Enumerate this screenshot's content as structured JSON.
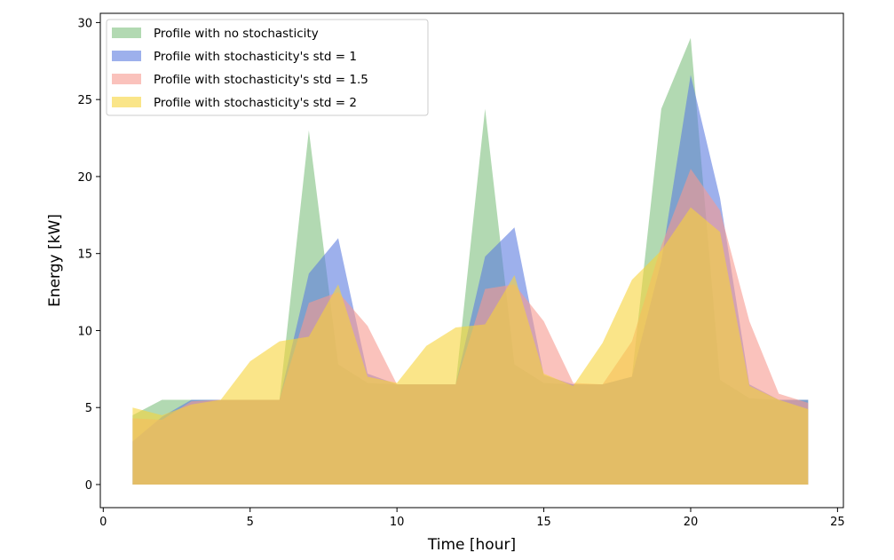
{
  "chart_data": {
    "type": "area",
    "xlabel": "Time [hour]",
    "ylabel": "Energy [kW]",
    "xlim": [
      -0.1,
      25.2
    ],
    "ylim": [
      -1.5,
      30.6
    ],
    "xticks": [
      0,
      5,
      10,
      15,
      20,
      25
    ],
    "yticks": [
      0,
      5,
      10,
      15,
      20,
      25,
      30
    ],
    "grid": false,
    "legend_position": "upper-left",
    "x": [
      1,
      2,
      3,
      4,
      5,
      6,
      7,
      8,
      9,
      10,
      11,
      12,
      13,
      14,
      15,
      16,
      17,
      18,
      19,
      20,
      21,
      22,
      23,
      24
    ],
    "series": [
      {
        "name": "Profile with no stochasticity",
        "color": "#7fbf7f",
        "values": [
          4.5,
          5.5,
          5.5,
          5.5,
          5.5,
          5.5,
          23.0,
          7.8,
          6.6,
          6.5,
          6.5,
          6.5,
          24.4,
          7.8,
          6.6,
          6.5,
          6.5,
          7.0,
          24.4,
          29.0,
          6.8,
          5.6,
          5.5,
          5.5
        ]
      },
      {
        "name": "Profile with stochasticity's std = 1",
        "color": "#5b7be0",
        "values": [
          2.8,
          4.4,
          5.5,
          5.5,
          5.5,
          5.5,
          13.7,
          16.0,
          7.2,
          6.5,
          6.5,
          6.5,
          14.8,
          16.7,
          7.1,
          6.5,
          6.5,
          7.0,
          14.5,
          26.6,
          18.6,
          6.5,
          5.5,
          5.5
        ]
      },
      {
        "name": "Profile with stochasticity's std = 1.5",
        "color": "#f79a90",
        "values": [
          4.3,
          4.2,
          5.4,
          5.5,
          5.5,
          5.5,
          11.8,
          12.5,
          10.3,
          6.5,
          6.5,
          6.5,
          12.7,
          13.0,
          10.6,
          6.6,
          6.5,
          9.3,
          15.5,
          20.5,
          17.8,
          10.6,
          5.9,
          5.3
        ]
      },
      {
        "name": "Profile with stochasticity's std = 2",
        "color": "#f7d43a",
        "values": [
          5.0,
          4.5,
          5.2,
          5.5,
          8.0,
          9.3,
          9.6,
          13.0,
          7.0,
          6.6,
          9.0,
          10.2,
          10.4,
          13.6,
          7.2,
          6.4,
          9.2,
          13.3,
          15.2,
          18.0,
          16.4,
          6.4,
          5.5,
          4.9
        ]
      }
    ]
  }
}
